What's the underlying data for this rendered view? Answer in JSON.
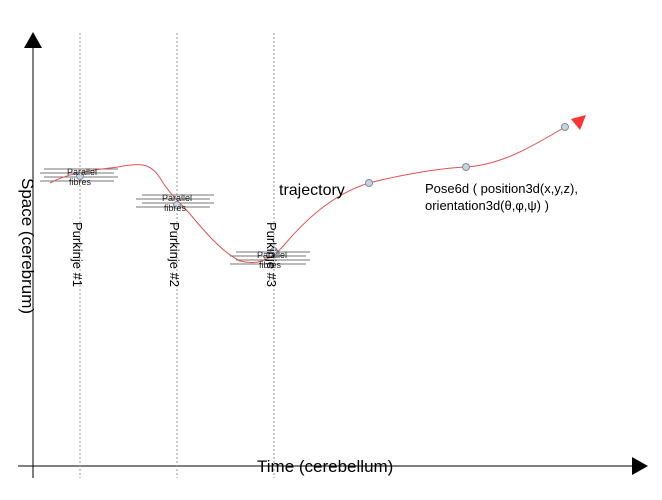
{
  "axes": {
    "x_label": "Time (cerebellum)",
    "y_label": "Space (cerebrum)"
  },
  "purkinje": [
    {
      "label": "Purkinje #1",
      "fibres": [
        "Parallel",
        "fibres"
      ]
    },
    {
      "label": "Purkinje #2",
      "fibres": [
        "Parallel",
        "fibres"
      ]
    },
    {
      "label": "Purkinje #3",
      "fibres": [
        "Parallel",
        "fibres"
      ]
    }
  ],
  "trajectory_label": "trajectory",
  "pose": {
    "line1": "Pose6d ( position3d(x,y,z),",
    "line2": "orientation3d(θ,φ,ψ) )"
  },
  "colors": {
    "axis": "#000000",
    "trajectory": "#e05555",
    "arrow_head": "#ff3333",
    "node_fill": "#c7d3df",
    "node_stroke": "#7f8fa0",
    "dashed": "#999999",
    "fibre_lines": "#777777"
  }
}
